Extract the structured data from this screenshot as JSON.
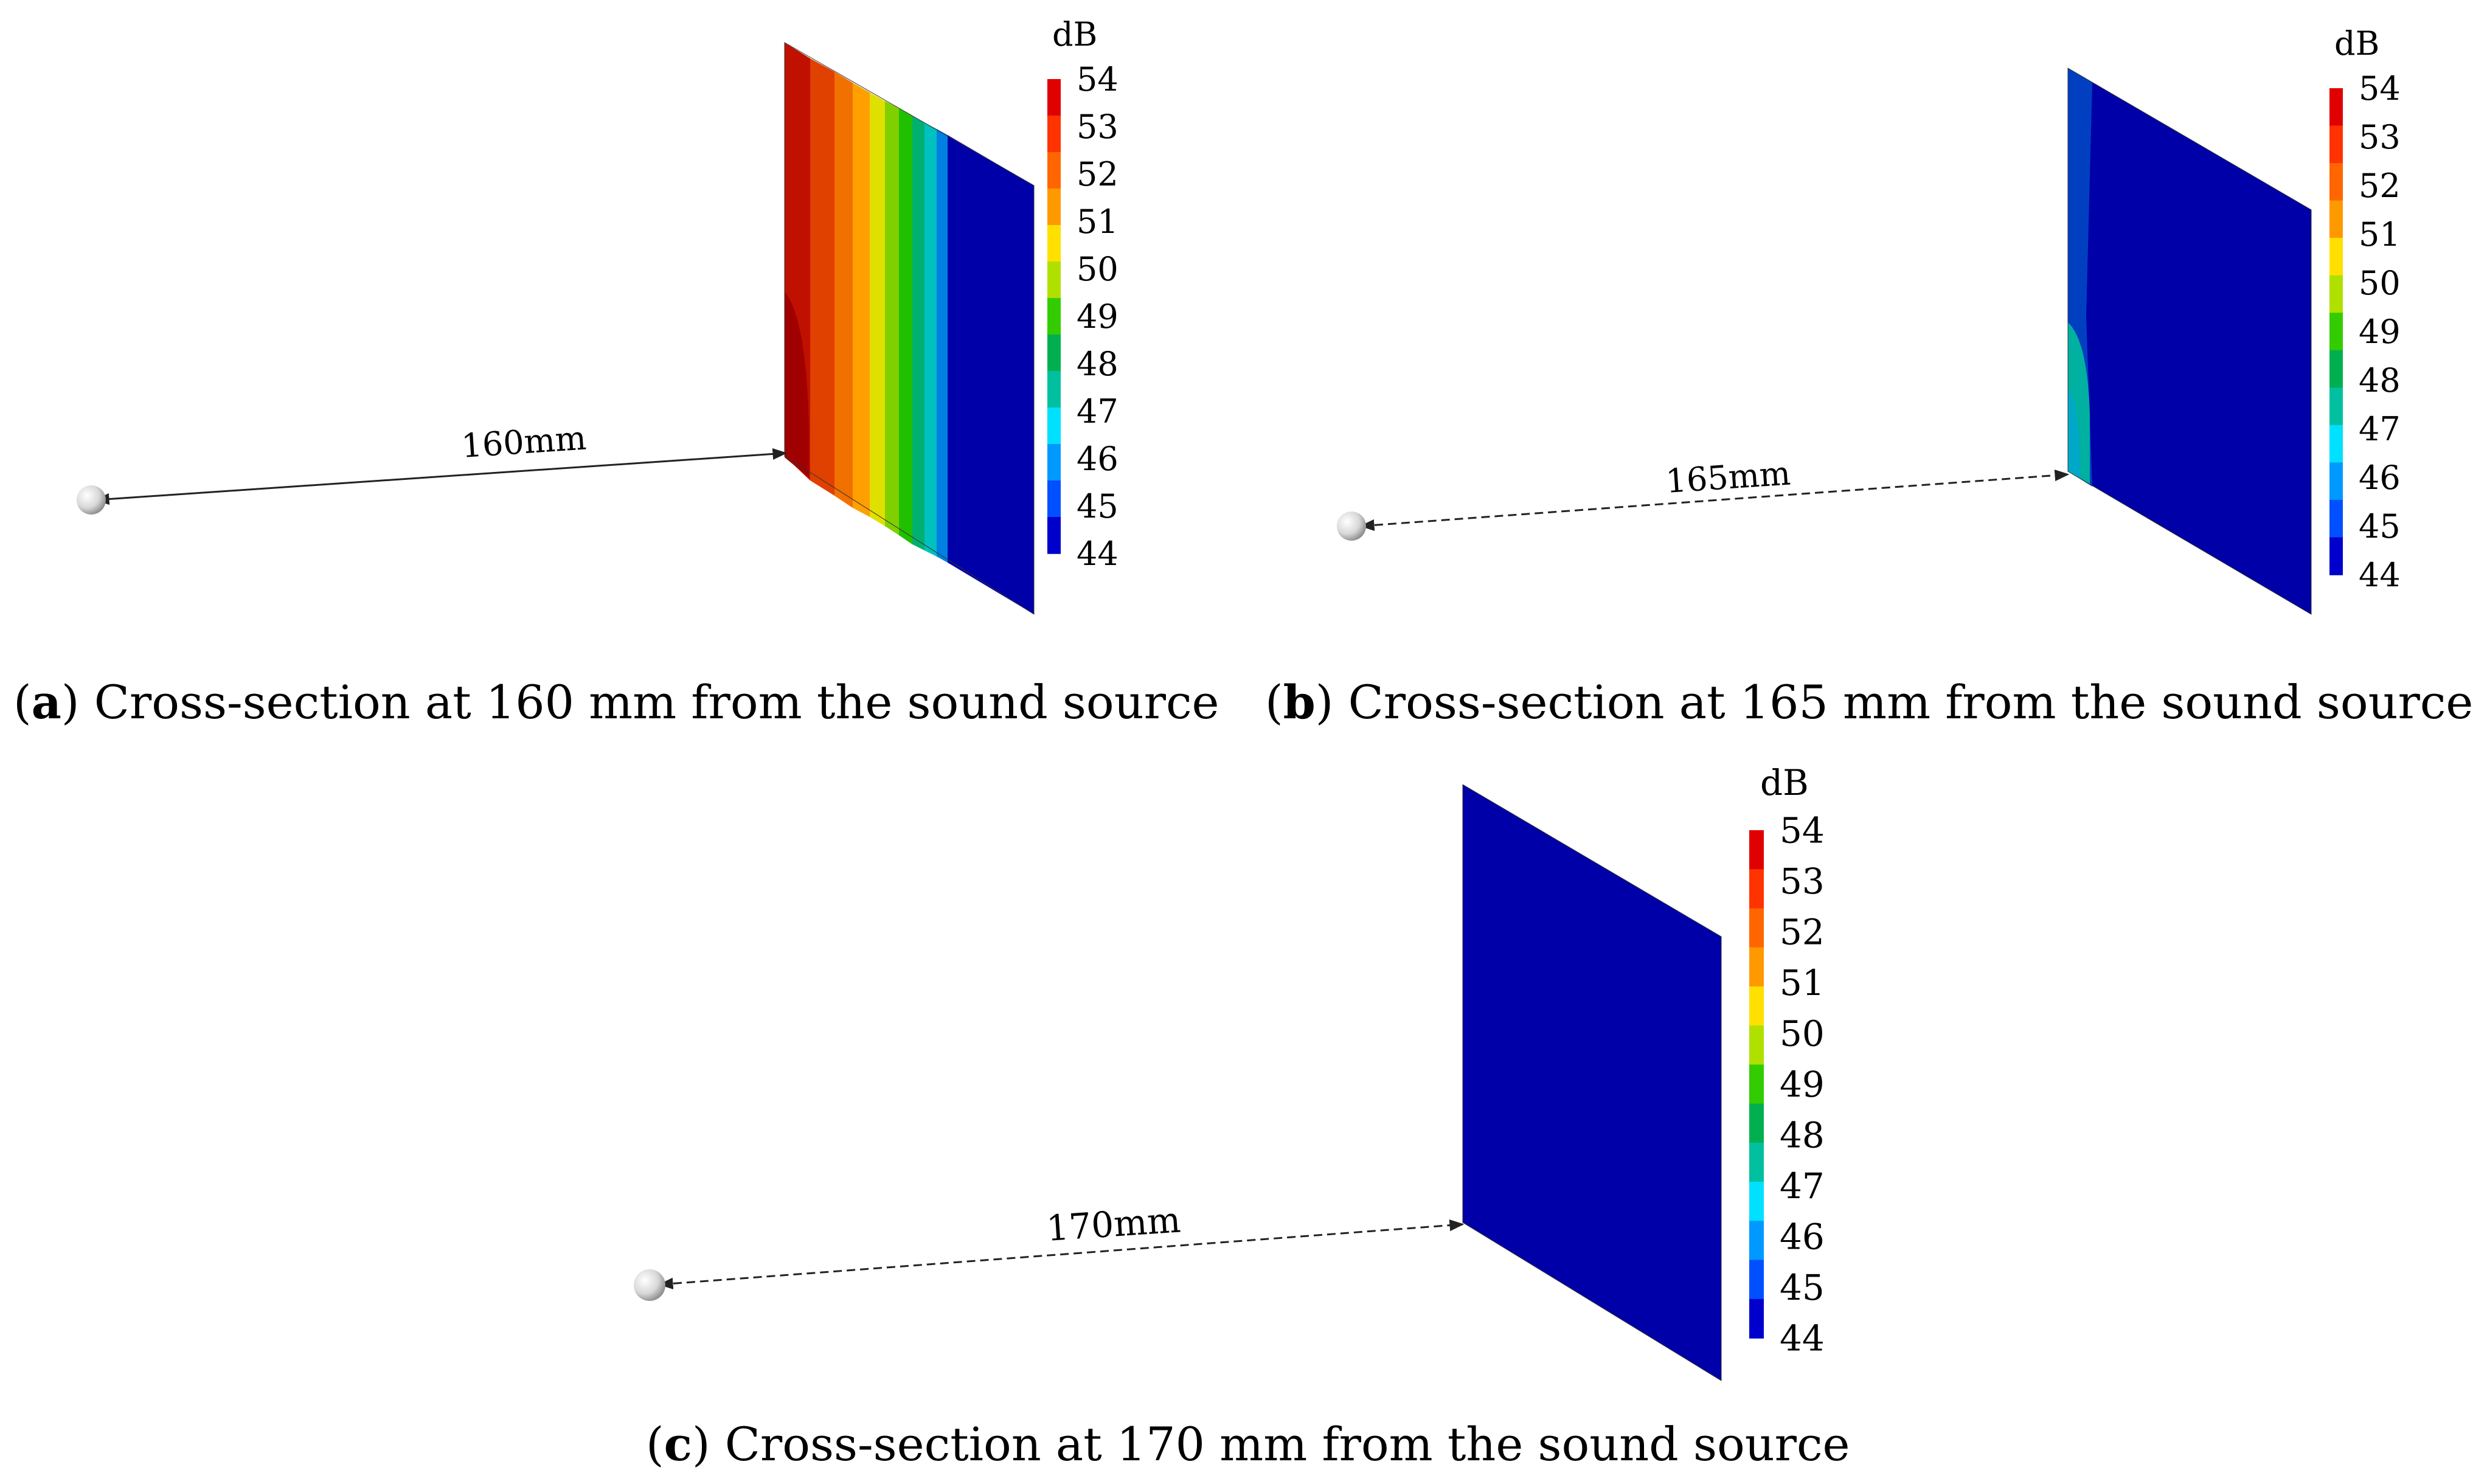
{
  "colorbar": {
    "unit": "dB",
    "ticks": [
      "54",
      "53",
      "52",
      "51",
      "50",
      "49",
      "48",
      "47",
      "46",
      "45",
      "44"
    ],
    "colors": [
      "#e00000",
      "#ff3300",
      "#ff6600",
      "#ff9900",
      "#ffe000",
      "#b0e000",
      "#33cc00",
      "#00b050",
      "#00c0a0",
      "#00e0ff",
      "#0099ff",
      "#0050ff",
      "#0000cc"
    ]
  },
  "panels": [
    {
      "id": "a",
      "distance_label": "160mm",
      "caption_letter": "a",
      "caption_text": ") Cross-section at 160 mm from the sound source"
    },
    {
      "id": "b",
      "distance_label": "165mm",
      "caption_letter": "b",
      "caption_text": ") Cross-section at 165 mm from the sound source"
    },
    {
      "id": "c",
      "distance_label": "170mm",
      "caption_letter": "c",
      "caption_text": ") Cross-section at 170 mm from the sound source"
    }
  ]
}
